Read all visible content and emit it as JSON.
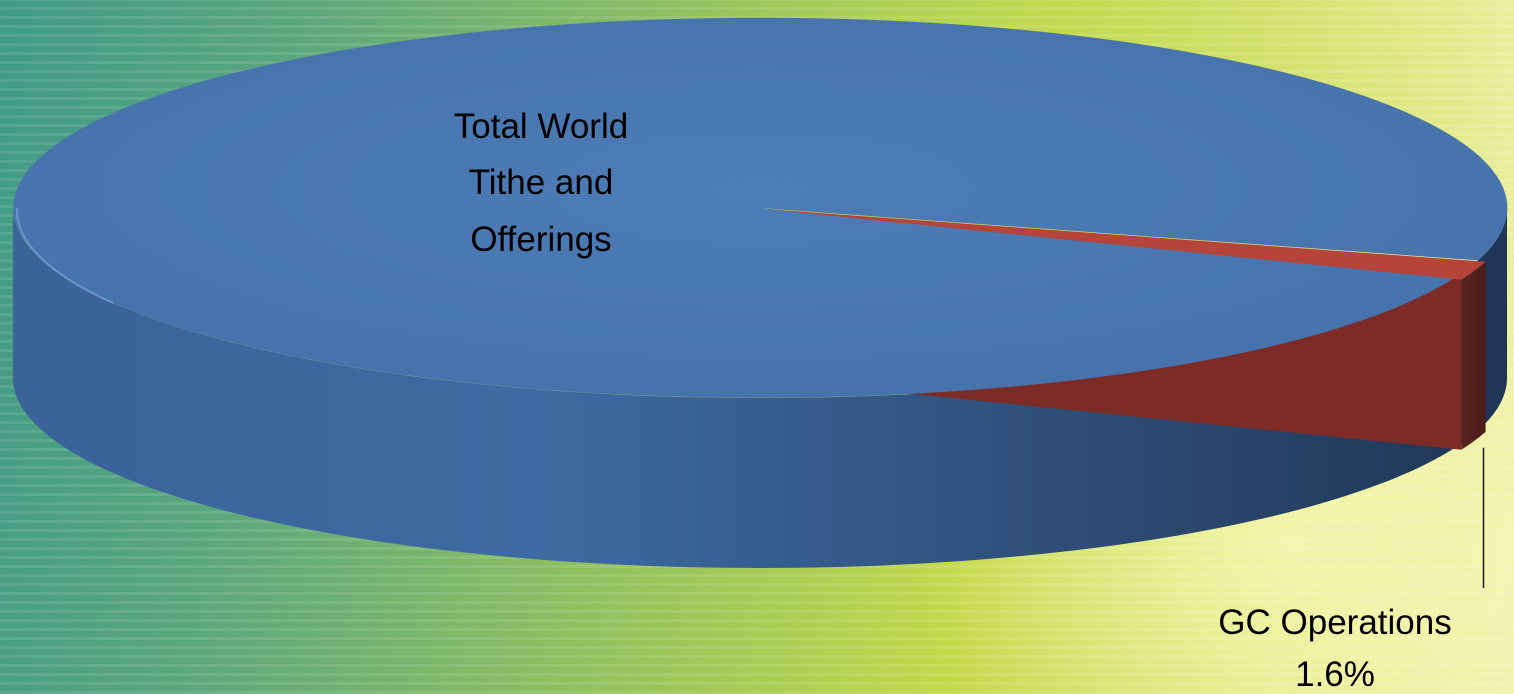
{
  "chart_data": {
    "type": "pie",
    "three_d": true,
    "slices": [
      {
        "label_lines": [
          "Total World",
          "Tithe and",
          "Offerings"
        ],
        "value": 98.4,
        "color": "#4a78b2"
      },
      {
        "label_lines": [
          "GC Operations",
          "1.6%"
        ],
        "value": 1.6,
        "color": "#9c3a33"
      }
    ],
    "legend": "none",
    "background": "green-yellow gradient"
  }
}
